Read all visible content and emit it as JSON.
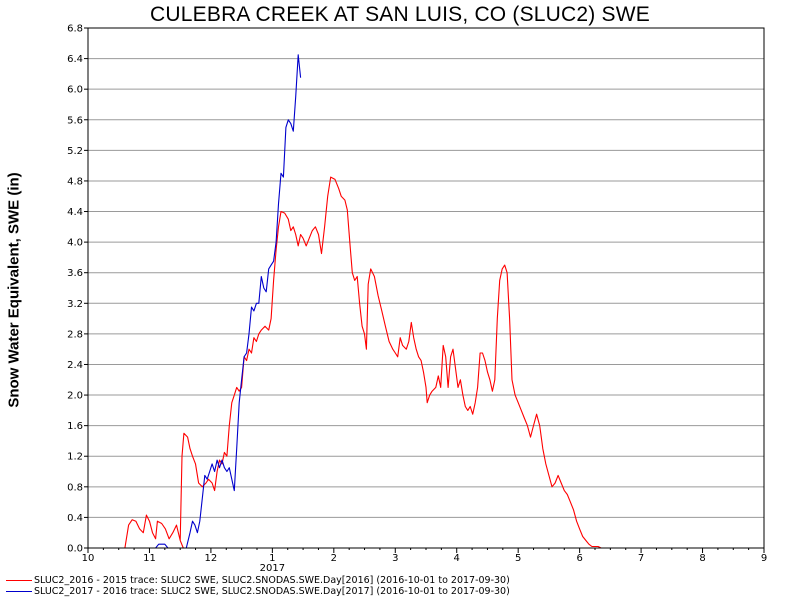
{
  "chart_data": {
    "type": "line",
    "title": "CULEBRA CREEK AT SAN LUIS, CO (SLUC2) SWE",
    "ylabel": "Snow Water Equivalent, SWE (in)",
    "ylim": [
      0.0,
      6.8
    ],
    "yticks": [
      "0.0",
      "0.4",
      "0.8",
      "1.2",
      "1.6",
      "2.0",
      "2.4",
      "2.8",
      "3.2",
      "3.6",
      "4.0",
      "4.4",
      "4.8",
      "5.2",
      "5.6",
      "6.0",
      "6.4",
      "6.8"
    ],
    "xlim": [
      10.0,
      21.0
    ],
    "xticks": [
      {
        "x": 10,
        "label": "10"
      },
      {
        "x": 11,
        "label": "11"
      },
      {
        "x": 12,
        "label": "12"
      },
      {
        "x": 13,
        "label": "1"
      },
      {
        "x": 14,
        "label": "2"
      },
      {
        "x": 15,
        "label": "3"
      },
      {
        "x": 16,
        "label": "4"
      },
      {
        "x": 17,
        "label": "5"
      },
      {
        "x": 18,
        "label": "6"
      },
      {
        "x": 19,
        "label": "7"
      },
      {
        "x": 20,
        "label": "8"
      },
      {
        "x": 21,
        "label": "9"
      }
    ],
    "year_label": {
      "x": 13,
      "label": "2017"
    },
    "grid": true,
    "legend_position": "bottom-left",
    "series": [
      {
        "name": "SLUC2_2016 - 2015 trace: SLUC2 SWE, SLUC2.SNODAS.SWE.Day[2016] (2016-10-01 to 2017-09-30)",
        "color": "#ff0000",
        "points": [
          [
            10.6,
            0.0
          ],
          [
            10.66,
            0.3
          ],
          [
            10.72,
            0.37
          ],
          [
            10.78,
            0.35
          ],
          [
            10.84,
            0.25
          ],
          [
            10.9,
            0.2
          ],
          [
            10.95,
            0.43
          ],
          [
            11.0,
            0.35
          ],
          [
            11.05,
            0.2
          ],
          [
            11.1,
            0.12
          ],
          [
            11.13,
            0.35
          ],
          [
            11.2,
            0.32
          ],
          [
            11.26,
            0.25
          ],
          [
            11.32,
            0.12
          ],
          [
            11.38,
            0.2
          ],
          [
            11.44,
            0.3
          ],
          [
            11.5,
            0.1
          ],
          [
            11.55,
            0.0
          ],
          [
            11.5,
            0.1
          ],
          [
            11.53,
            1.2
          ],
          [
            11.56,
            1.5
          ],
          [
            11.62,
            1.45
          ],
          [
            11.66,
            1.3
          ],
          [
            11.7,
            1.2
          ],
          [
            11.75,
            1.1
          ],
          [
            11.8,
            0.85
          ],
          [
            11.86,
            0.8
          ],
          [
            11.92,
            0.85
          ],
          [
            11.96,
            0.9
          ],
          [
            12.02,
            0.85
          ],
          [
            12.06,
            0.75
          ],
          [
            12.1,
            1.0
          ],
          [
            12.14,
            1.15
          ],
          [
            12.18,
            1.1
          ],
          [
            12.22,
            1.25
          ],
          [
            12.26,
            1.2
          ],
          [
            12.3,
            1.6
          ],
          [
            12.34,
            1.9
          ],
          [
            12.38,
            2.0
          ],
          [
            12.42,
            2.1
          ],
          [
            12.46,
            2.05
          ],
          [
            12.5,
            2.1
          ],
          [
            12.54,
            2.5
          ],
          [
            12.58,
            2.45
          ],
          [
            12.62,
            2.6
          ],
          [
            12.66,
            2.55
          ],
          [
            12.7,
            2.75
          ],
          [
            12.74,
            2.7
          ],
          [
            12.78,
            2.8
          ],
          [
            12.82,
            2.85
          ],
          [
            12.88,
            2.9
          ],
          [
            12.94,
            2.85
          ],
          [
            12.98,
            3.0
          ],
          [
            13.02,
            3.5
          ],
          [
            13.06,
            3.9
          ],
          [
            13.1,
            4.2
          ],
          [
            13.14,
            4.4
          ],
          [
            13.2,
            4.38
          ],
          [
            13.26,
            4.3
          ],
          [
            13.3,
            4.15
          ],
          [
            13.34,
            4.2
          ],
          [
            13.38,
            4.1
          ],
          [
            13.42,
            3.95
          ],
          [
            13.46,
            4.1
          ],
          [
            13.5,
            4.05
          ],
          [
            13.55,
            3.95
          ],
          [
            13.6,
            4.05
          ],
          [
            13.65,
            4.15
          ],
          [
            13.7,
            4.2
          ],
          [
            13.75,
            4.1
          ],
          [
            13.8,
            3.85
          ],
          [
            13.85,
            4.2
          ],
          [
            13.9,
            4.6
          ],
          [
            13.95,
            4.85
          ],
          [
            14.02,
            4.82
          ],
          [
            14.08,
            4.7
          ],
          [
            14.12,
            4.6
          ],
          [
            14.18,
            4.55
          ],
          [
            14.22,
            4.42
          ],
          [
            14.26,
            4.0
          ],
          [
            14.3,
            3.6
          ],
          [
            14.34,
            3.5
          ],
          [
            14.38,
            3.55
          ],
          [
            14.42,
            3.2
          ],
          [
            14.46,
            2.9
          ],
          [
            14.5,
            2.8
          ],
          [
            14.53,
            2.6
          ],
          [
            14.56,
            3.45
          ],
          [
            14.6,
            3.65
          ],
          [
            14.66,
            3.55
          ],
          [
            14.72,
            3.3
          ],
          [
            14.78,
            3.1
          ],
          [
            14.84,
            2.9
          ],
          [
            14.9,
            2.7
          ],
          [
            14.96,
            2.6
          ],
          [
            15.0,
            2.55
          ],
          [
            15.04,
            2.5
          ],
          [
            15.08,
            2.75
          ],
          [
            15.12,
            2.65
          ],
          [
            15.18,
            2.6
          ],
          [
            15.22,
            2.7
          ],
          [
            15.26,
            2.95
          ],
          [
            15.3,
            2.75
          ],
          [
            15.34,
            2.6
          ],
          [
            15.38,
            2.5
          ],
          [
            15.42,
            2.45
          ],
          [
            15.46,
            2.3
          ],
          [
            15.5,
            2.1
          ],
          [
            15.52,
            1.9
          ],
          [
            15.56,
            2.0
          ],
          [
            15.6,
            2.05
          ],
          [
            15.66,
            2.1
          ],
          [
            15.7,
            2.25
          ],
          [
            15.74,
            2.1
          ],
          [
            15.78,
            2.65
          ],
          [
            15.82,
            2.5
          ],
          [
            15.86,
            2.1
          ],
          [
            15.9,
            2.5
          ],
          [
            15.94,
            2.6
          ],
          [
            15.98,
            2.35
          ],
          [
            16.02,
            2.1
          ],
          [
            16.06,
            2.2
          ],
          [
            16.1,
            2.0
          ],
          [
            16.14,
            1.85
          ],
          [
            16.18,
            1.8
          ],
          [
            16.22,
            1.85
          ],
          [
            16.26,
            1.75
          ],
          [
            16.3,
            1.9
          ],
          [
            16.34,
            2.1
          ],
          [
            16.38,
            2.55
          ],
          [
            16.42,
            2.55
          ],
          [
            16.46,
            2.45
          ],
          [
            16.5,
            2.3
          ],
          [
            16.54,
            2.2
          ],
          [
            16.58,
            2.05
          ],
          [
            16.62,
            2.2
          ],
          [
            16.66,
            3.0
          ],
          [
            16.7,
            3.5
          ],
          [
            16.74,
            3.65
          ],
          [
            16.78,
            3.7
          ],
          [
            16.82,
            3.6
          ],
          [
            16.86,
            3.0
          ],
          [
            16.9,
            2.2
          ],
          [
            16.95,
            2.0
          ],
          [
            17.0,
            1.9
          ],
          [
            17.05,
            1.8
          ],
          [
            17.1,
            1.7
          ],
          [
            17.15,
            1.6
          ],
          [
            17.2,
            1.45
          ],
          [
            17.25,
            1.6
          ],
          [
            17.3,
            1.75
          ],
          [
            17.35,
            1.6
          ],
          [
            17.4,
            1.3
          ],
          [
            17.45,
            1.1
          ],
          [
            17.5,
            0.95
          ],
          [
            17.55,
            0.8
          ],
          [
            17.6,
            0.85
          ],
          [
            17.65,
            0.95
          ],
          [
            17.7,
            0.85
          ],
          [
            17.75,
            0.75
          ],
          [
            17.8,
            0.7
          ],
          [
            17.85,
            0.6
          ],
          [
            17.9,
            0.5
          ],
          [
            17.95,
            0.35
          ],
          [
            18.0,
            0.25
          ],
          [
            18.05,
            0.15
          ],
          [
            18.1,
            0.1
          ],
          [
            18.15,
            0.05
          ],
          [
            18.2,
            0.02
          ],
          [
            18.3,
            0.02
          ],
          [
            18.35,
            0.0
          ]
        ]
      },
      {
        "name": "SLUC2_2017 - 2016 trace: SLUC2 SWE, SLUC2.SNODAS.SWE.Day[2017] (2016-10-01 to 2017-09-30)",
        "color": "#0000cc",
        "points": [
          [
            11.1,
            0.0
          ],
          [
            11.15,
            0.05
          ],
          [
            11.2,
            0.05
          ],
          [
            11.25,
            0.05
          ],
          [
            11.3,
            0.0
          ],
          [
            11.6,
            0.0
          ],
          [
            11.66,
            0.2
          ],
          [
            11.7,
            0.35
          ],
          [
            11.74,
            0.3
          ],
          [
            11.78,
            0.2
          ],
          [
            11.82,
            0.35
          ],
          [
            11.86,
            0.65
          ],
          [
            11.9,
            0.95
          ],
          [
            11.94,
            0.9
          ],
          [
            11.98,
            1.0
          ],
          [
            12.02,
            1.1
          ],
          [
            12.06,
            1.0
          ],
          [
            12.1,
            1.15
          ],
          [
            12.14,
            1.05
          ],
          [
            12.18,
            1.15
          ],
          [
            12.22,
            1.05
          ],
          [
            12.26,
            1.0
          ],
          [
            12.3,
            1.05
          ],
          [
            12.34,
            0.9
          ],
          [
            12.38,
            0.75
          ],
          [
            12.42,
            1.3
          ],
          [
            12.46,
            1.9
          ],
          [
            12.5,
            2.2
          ],
          [
            12.54,
            2.5
          ],
          [
            12.58,
            2.55
          ],
          [
            12.62,
            2.8
          ],
          [
            12.66,
            3.15
          ],
          [
            12.7,
            3.1
          ],
          [
            12.74,
            3.2
          ],
          [
            12.78,
            3.2
          ],
          [
            12.82,
            3.55
          ],
          [
            12.86,
            3.4
          ],
          [
            12.9,
            3.35
          ],
          [
            12.94,
            3.65
          ],
          [
            12.98,
            3.7
          ],
          [
            13.02,
            3.75
          ],
          [
            13.06,
            4.0
          ],
          [
            13.1,
            4.5
          ],
          [
            13.14,
            4.9
          ],
          [
            13.18,
            4.85
          ],
          [
            13.22,
            5.5
          ],
          [
            13.26,
            5.6
          ],
          [
            13.3,
            5.55
          ],
          [
            13.34,
            5.45
          ],
          [
            13.38,
            5.9
          ],
          [
            13.42,
            6.45
          ],
          [
            13.46,
            6.15
          ]
        ]
      }
    ]
  }
}
